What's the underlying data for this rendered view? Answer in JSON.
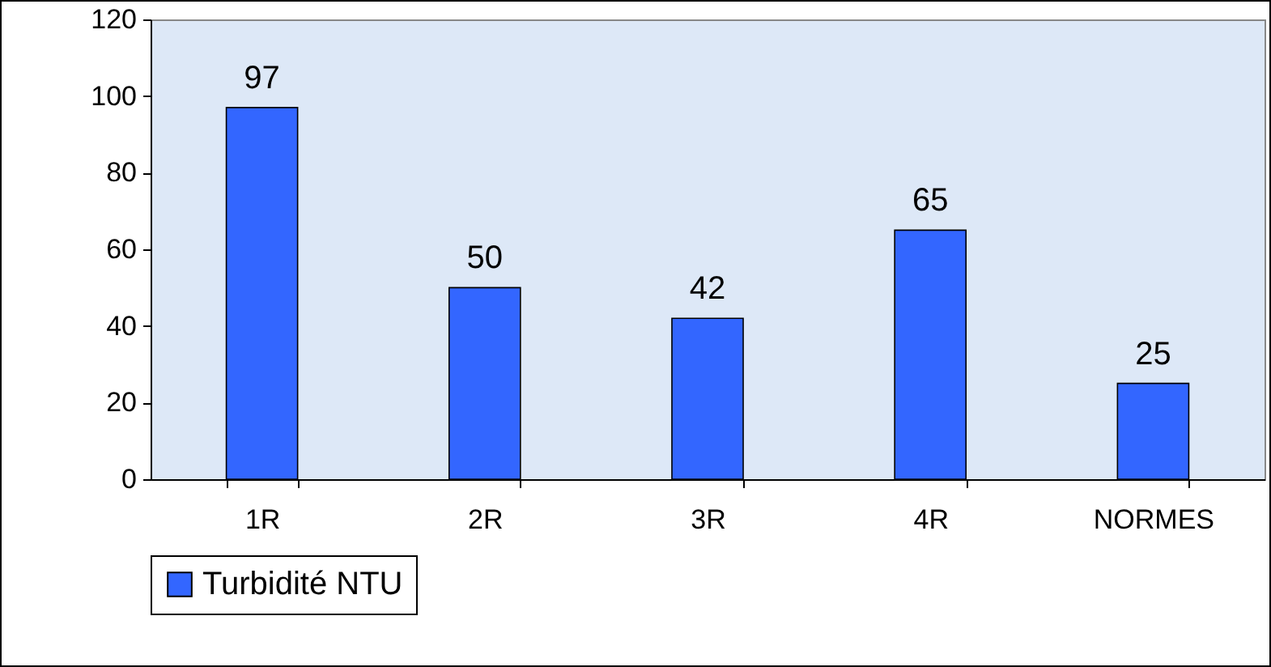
{
  "chart_data": {
    "type": "bar",
    "categories": [
      "1R",
      "2R",
      "3R",
      "4R",
      "NORMES"
    ],
    "series": [
      {
        "name": "Turbidité NTU",
        "color": "#3366ff",
        "values": [
          97,
          50,
          42,
          65,
          25
        ]
      }
    ],
    "ylim": [
      0,
      120
    ],
    "yticks": [
      0,
      20,
      40,
      60,
      80,
      100,
      120
    ],
    "data_labels": true,
    "legend": "bottom"
  }
}
